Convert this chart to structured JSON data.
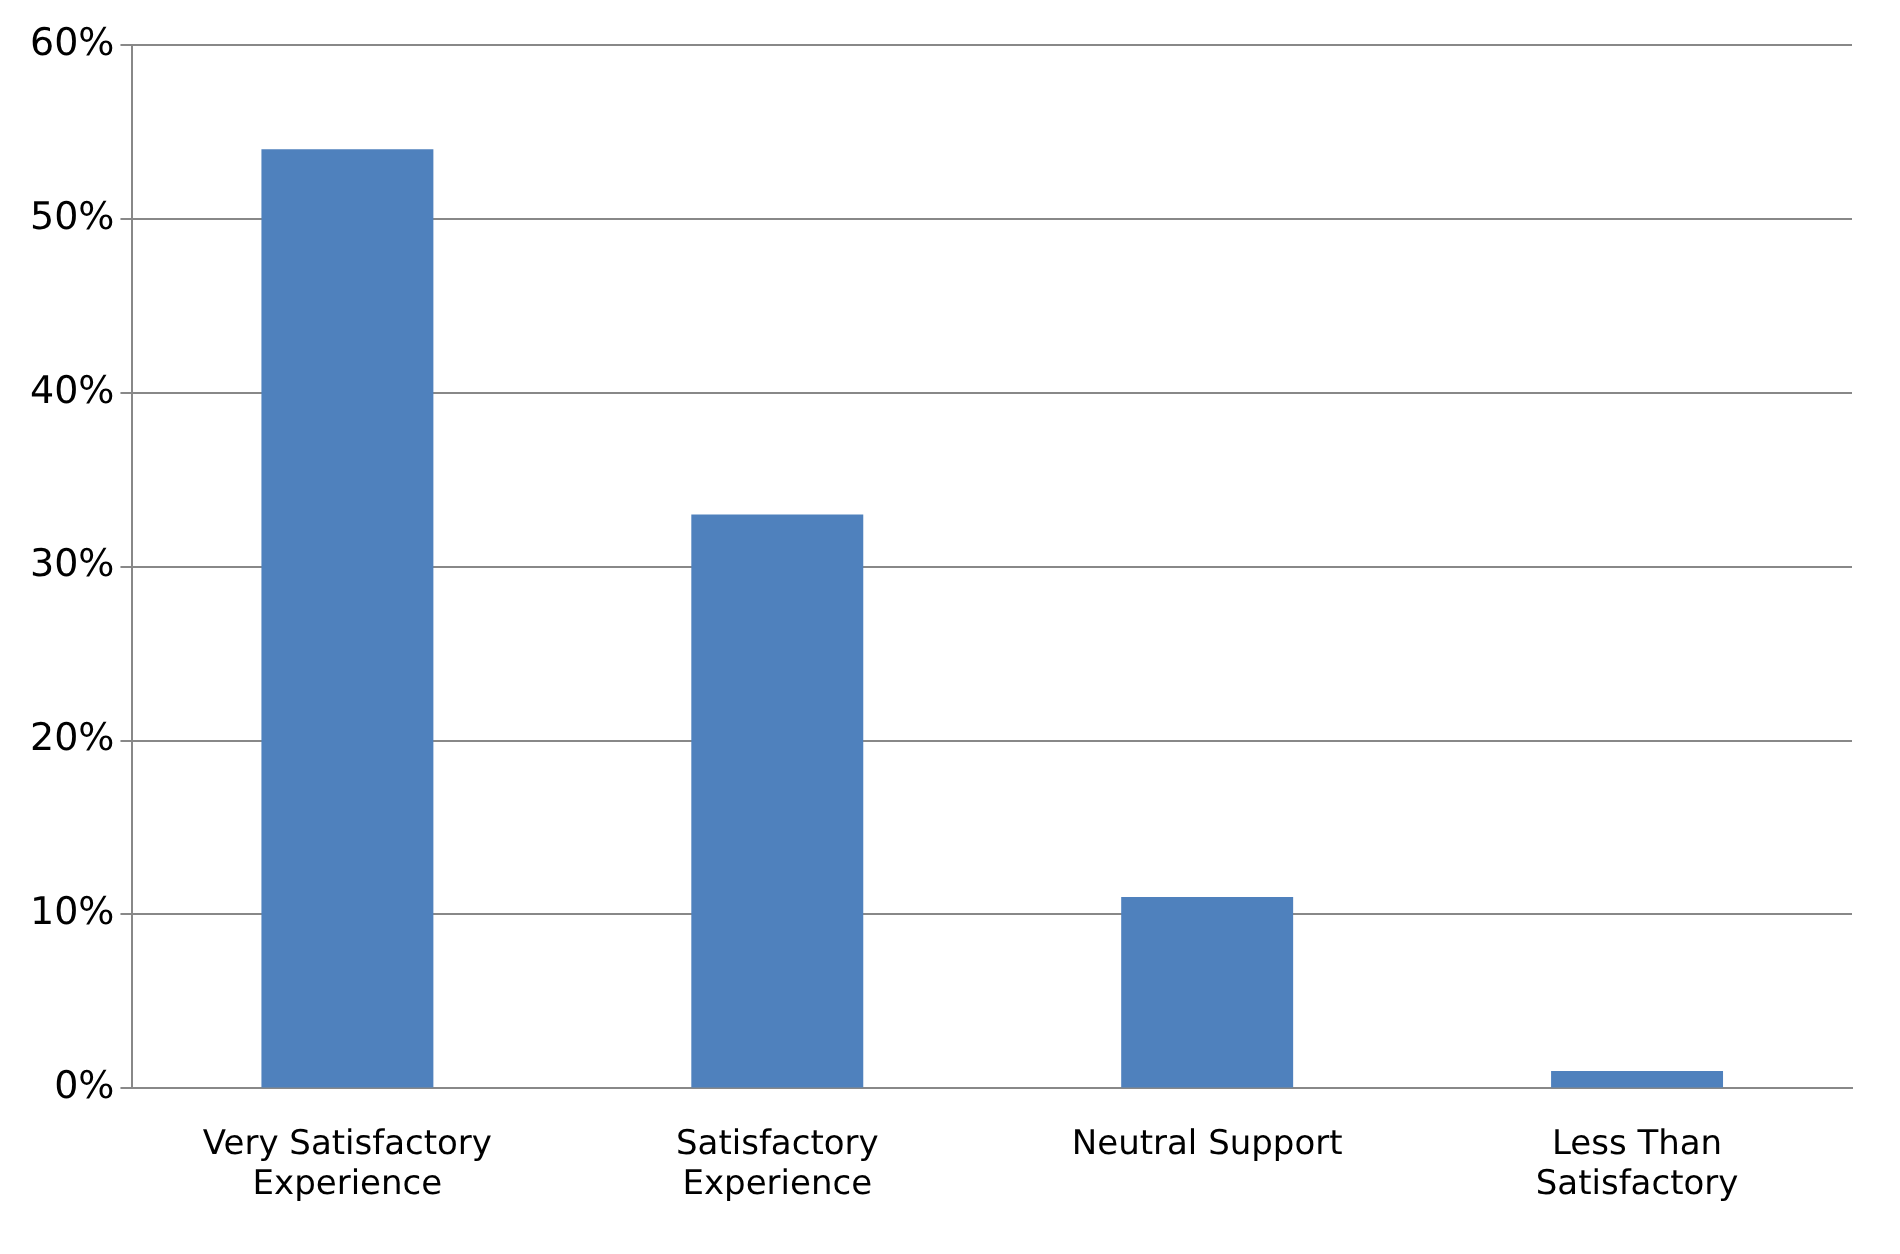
{
  "chart_data": {
    "type": "bar",
    "categories": [
      "Very Satisfactory Experience",
      "Satisfactory Experience",
      "Neutral Support",
      "Less Than Satisfactory"
    ],
    "values": [
      54,
      33,
      11,
      1
    ],
    "color": "#4f81bd",
    "ylim": [
      0,
      60
    ],
    "yticks": [
      {
        "value": 0,
        "label": "0%"
      },
      {
        "value": 10,
        "label": "10%"
      },
      {
        "value": 20,
        "label": "20%"
      },
      {
        "value": 30,
        "label": "30%"
      },
      {
        "value": 40,
        "label": "40%"
      },
      {
        "value": 50,
        "label": "50%"
      },
      {
        "value": 60,
        "label": "60%"
      }
    ],
    "grid": "y",
    "legend": false
  }
}
